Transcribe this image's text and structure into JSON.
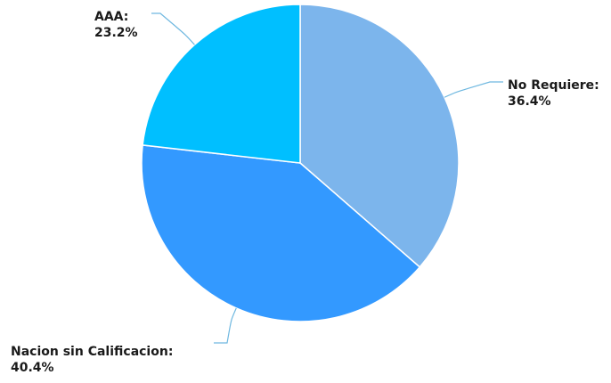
{
  "chart_data": {
    "type": "pie",
    "start_angle_deg": 0,
    "direction": "clockwise",
    "slices": [
      {
        "name": "No Requiere",
        "value": 36.4,
        "label_line1": "No Requiere:",
        "label_line2": "36.4%",
        "color": "#7cb5ec"
      },
      {
        "name": "Nacion sin Calificacion",
        "value": 40.4,
        "label_line1": "Nacion sin Calificacion:",
        "label_line2": "40.4%",
        "color": "#3399ff"
      },
      {
        "name": "AAA",
        "value": 23.2,
        "label_line1": "AAA:",
        "label_line2": "23.2%",
        "color": "#00bfff"
      }
    ],
    "connector_color": "#6fb8e0",
    "slice_border_color": "#ffffff"
  }
}
